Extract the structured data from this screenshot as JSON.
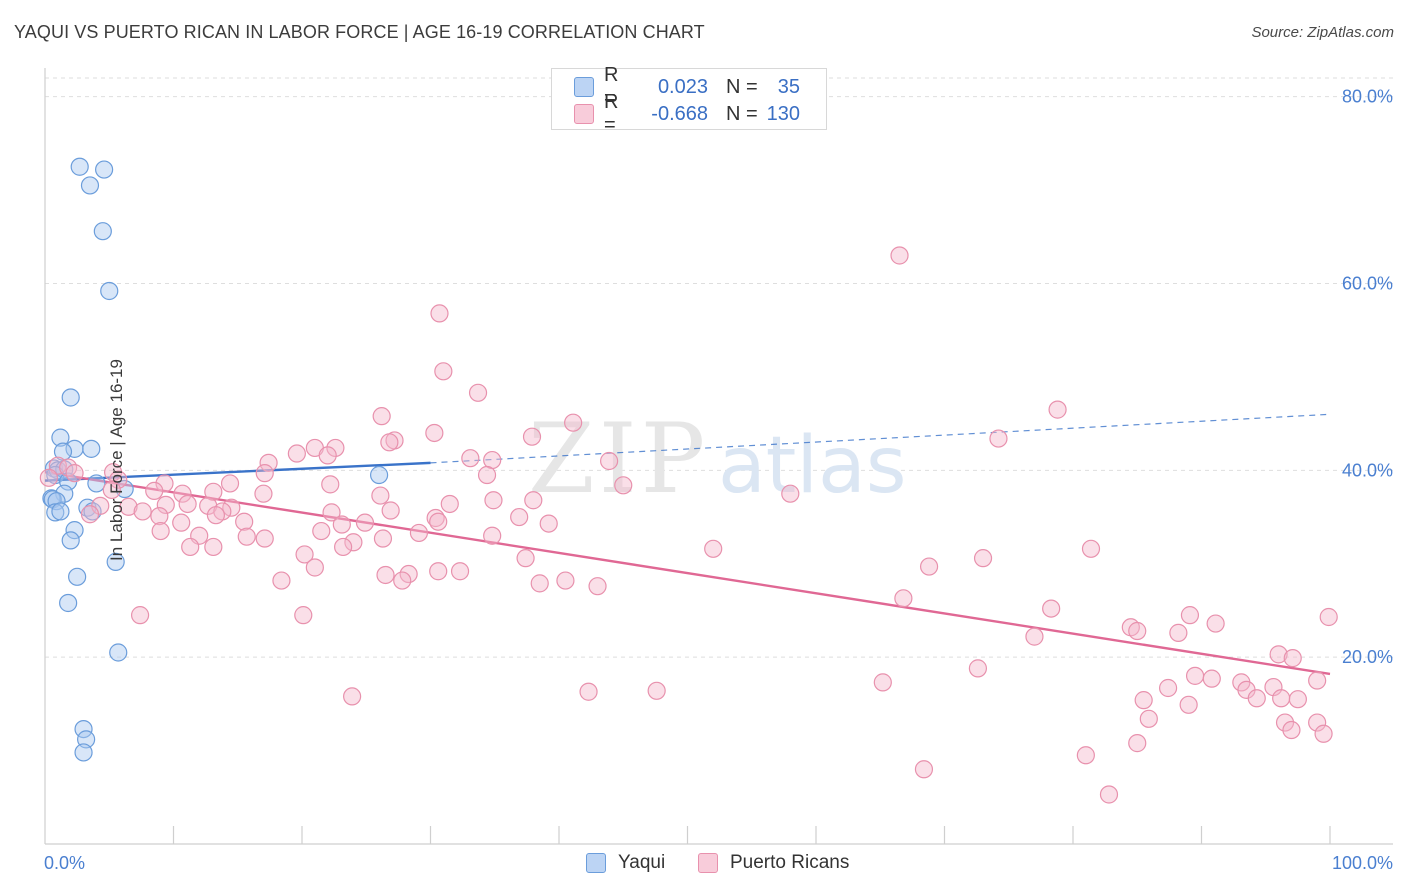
{
  "title": "YAQUI VS PUERTO RICAN IN LABOR FORCE | AGE 16-19 CORRELATION CHART",
  "source": "Source: ZipAtlas.com",
  "watermark": {
    "zip": "ZIP",
    "atlas": "atlas"
  },
  "colors": {
    "yaqui_fill": "#a9c7ef",
    "yaqui_stroke": "#6b9ddb",
    "yaqui_line": "#3a73c9",
    "pr_fill": "#f5b9cc",
    "pr_stroke": "#e891ad",
    "pr_line": "#e06894",
    "tick_text": "#4a7fd0",
    "grid": "#dedede"
  },
  "legend": {
    "rows": [
      {
        "series": "yaqui",
        "r_label": "R =",
        "r_value": "0.023",
        "n_label": "N =",
        "n_value": "35"
      },
      {
        "series": "pr",
        "r_label": "R =",
        "r_value": "-0.668",
        "n_label": "N =",
        "n_value": "130"
      }
    ],
    "bottom": [
      {
        "series": "yaqui",
        "label": "Yaqui"
      },
      {
        "series": "pr",
        "label": "Puerto Ricans"
      }
    ]
  },
  "chart_data": {
    "type": "scatter",
    "title": "YAQUI VS PUERTO RICAN IN LABOR FORCE | AGE 16-19 CORRELATION CHART",
    "xlabel": "",
    "ylabel": "In Labor Force | Age 16-19",
    "xlim": [
      0,
      100
    ],
    "ylim": [
      0,
      82
    ],
    "x_tick_labels": [
      {
        "value": 0,
        "label": "0.0%"
      },
      {
        "value": 100,
        "label": "100.0%"
      }
    ],
    "y_tick_labels": [
      {
        "value": 20,
        "label": "20.0%"
      },
      {
        "value": 40,
        "label": "40.0%"
      },
      {
        "value": 60,
        "label": "60.0%"
      },
      {
        "value": 80,
        "label": "80.0%"
      }
    ],
    "y_gridlines": [
      20,
      40,
      60,
      80
    ],
    "x_minor_ticks": [
      10,
      20,
      30,
      40,
      50,
      60,
      70,
      80,
      90,
      100
    ],
    "series": [
      {
        "name": "Yaqui",
        "key": "yaqui",
        "points": [
          [
            2.7,
            72.5
          ],
          [
            4.6,
            72.2
          ],
          [
            3.5,
            70.5
          ],
          [
            4.5,
            65.6
          ],
          [
            5.0,
            59.2
          ],
          [
            2.0,
            47.8
          ],
          [
            1.2,
            43.5
          ],
          [
            2.3,
            42.3
          ],
          [
            3.6,
            42.3
          ],
          [
            1.4,
            42.0
          ],
          [
            0.7,
            40.2
          ],
          [
            1.0,
            40.0
          ],
          [
            1.5,
            40.1
          ],
          [
            0.8,
            39.5
          ],
          [
            1.8,
            38.8
          ],
          [
            4.0,
            38.6
          ],
          [
            6.2,
            38.0
          ],
          [
            1.5,
            37.5
          ],
          [
            0.5,
            37.0
          ],
          [
            0.6,
            36.9
          ],
          [
            0.9,
            36.7
          ],
          [
            3.3,
            36.0
          ],
          [
            0.8,
            35.5
          ],
          [
            1.2,
            35.6
          ],
          [
            3.7,
            35.6
          ],
          [
            2.3,
            33.6
          ],
          [
            2.0,
            32.5
          ],
          [
            5.5,
            30.2
          ],
          [
            2.5,
            28.6
          ],
          [
            1.8,
            25.8
          ],
          [
            5.7,
            20.5
          ],
          [
            3.0,
            12.3
          ],
          [
            3.2,
            11.2
          ],
          [
            3.0,
            9.8
          ],
          [
            26.0,
            39.5
          ]
        ],
        "trend": {
          "x0": 0,
          "y0": 38.9,
          "x1": 30,
          "y1": 40.8,
          "dashed_to_x": 100,
          "dashed_to_y": 46.0
        }
      },
      {
        "name": "Puerto Ricans",
        "key": "pr",
        "points": [
          [
            66.5,
            63.0
          ],
          [
            30.7,
            56.8
          ],
          [
            31.0,
            50.6
          ],
          [
            33.7,
            48.3
          ],
          [
            78.8,
            46.5
          ],
          [
            26.2,
            45.8
          ],
          [
            41.1,
            45.1
          ],
          [
            30.3,
            44.0
          ],
          [
            37.9,
            43.6
          ],
          [
            27.2,
            43.2
          ],
          [
            26.8,
            43.0
          ],
          [
            74.2,
            43.4
          ],
          [
            21.0,
            42.4
          ],
          [
            22.6,
            42.4
          ],
          [
            19.6,
            41.8
          ],
          [
            22.0,
            41.6
          ],
          [
            33.1,
            41.3
          ],
          [
            17.4,
            40.8
          ],
          [
            34.8,
            41.1
          ],
          [
            43.9,
            41.0
          ],
          [
            1.0,
            40.5
          ],
          [
            1.8,
            40.3
          ],
          [
            5.3,
            39.8
          ],
          [
            2.3,
            39.7
          ],
          [
            17.1,
            39.7
          ],
          [
            34.4,
            39.5
          ],
          [
            0.3,
            39.2
          ],
          [
            5.7,
            39.0
          ],
          [
            9.3,
            38.6
          ],
          [
            14.4,
            38.6
          ],
          [
            22.2,
            38.5
          ],
          [
            45.0,
            38.4
          ],
          [
            5.2,
            37.9
          ],
          [
            8.5,
            37.8
          ],
          [
            13.1,
            37.7
          ],
          [
            17.0,
            37.5
          ],
          [
            10.7,
            37.5
          ],
          [
            26.1,
            37.3
          ],
          [
            58.0,
            37.5
          ],
          [
            4.3,
            36.2
          ],
          [
            6.5,
            36.1
          ],
          [
            11.1,
            36.4
          ],
          [
            12.7,
            36.2
          ],
          [
            34.9,
            36.8
          ],
          [
            38.0,
            36.8
          ],
          [
            14.5,
            36.0
          ],
          [
            9.4,
            36.3
          ],
          [
            13.8,
            35.6
          ],
          [
            22.3,
            35.5
          ],
          [
            26.9,
            35.7
          ],
          [
            31.5,
            36.4
          ],
          [
            7.6,
            35.6
          ],
          [
            8.9,
            35.1
          ],
          [
            13.3,
            35.2
          ],
          [
            3.5,
            35.3
          ],
          [
            30.4,
            34.9
          ],
          [
            36.9,
            35.0
          ],
          [
            10.6,
            34.4
          ],
          [
            15.5,
            34.5
          ],
          [
            23.1,
            34.2
          ],
          [
            24.9,
            34.4
          ],
          [
            30.6,
            34.5
          ],
          [
            39.2,
            34.3
          ],
          [
            9.0,
            33.5
          ],
          [
            21.5,
            33.5
          ],
          [
            29.1,
            33.3
          ],
          [
            12.0,
            33.0
          ],
          [
            15.7,
            32.9
          ],
          [
            26.3,
            32.7
          ],
          [
            34.8,
            33.0
          ],
          [
            17.1,
            32.7
          ],
          [
            24.0,
            32.3
          ],
          [
            11.3,
            31.8
          ],
          [
            13.1,
            31.8
          ],
          [
            20.2,
            31.0
          ],
          [
            23.2,
            31.8
          ],
          [
            52.0,
            31.6
          ],
          [
            81.4,
            31.6
          ],
          [
            37.4,
            30.6
          ],
          [
            68.8,
            29.7
          ],
          [
            73.0,
            30.6
          ],
          [
            21.0,
            29.6
          ],
          [
            30.6,
            29.2
          ],
          [
            32.3,
            29.2
          ],
          [
            26.5,
            28.8
          ],
          [
            28.3,
            28.9
          ],
          [
            18.4,
            28.2
          ],
          [
            27.8,
            28.2
          ],
          [
            38.5,
            27.9
          ],
          [
            40.5,
            28.2
          ],
          [
            43.0,
            27.6
          ],
          [
            66.8,
            26.3
          ],
          [
            7.4,
            24.5
          ],
          [
            20.1,
            24.5
          ],
          [
            78.3,
            25.2
          ],
          [
            89.1,
            24.5
          ],
          [
            91.1,
            23.6
          ],
          [
            84.5,
            23.2
          ],
          [
            85.0,
            22.8
          ],
          [
            77.0,
            22.2
          ],
          [
            88.2,
            22.6
          ],
          [
            96.0,
            20.3
          ],
          [
            97.1,
            19.9
          ],
          [
            72.6,
            18.8
          ],
          [
            89.5,
            18.0
          ],
          [
            90.8,
            17.7
          ],
          [
            93.1,
            17.3
          ],
          [
            99.0,
            17.5
          ],
          [
            93.5,
            16.5
          ],
          [
            87.4,
            16.7
          ],
          [
            42.3,
            16.3
          ],
          [
            47.6,
            16.4
          ],
          [
            65.2,
            17.3
          ],
          [
            95.6,
            16.8
          ],
          [
            96.2,
            15.6
          ],
          [
            97.5,
            15.5
          ],
          [
            94.3,
            15.6
          ],
          [
            85.5,
            15.4
          ],
          [
            85.9,
            13.4
          ],
          [
            89.0,
            14.9
          ],
          [
            96.5,
            13.0
          ],
          [
            99.0,
            13.0
          ],
          [
            97.0,
            12.2
          ],
          [
            99.5,
            11.8
          ],
          [
            85.0,
            10.8
          ],
          [
            81.0,
            9.5
          ],
          [
            68.4,
            8.0
          ],
          [
            82.8,
            5.3
          ],
          [
            23.9,
            15.8
          ],
          [
            99.9,
            24.3
          ]
        ],
        "trend": {
          "x0": 0,
          "y0": 39.8,
          "x1": 100,
          "y1": 18.2
        }
      }
    ]
  }
}
